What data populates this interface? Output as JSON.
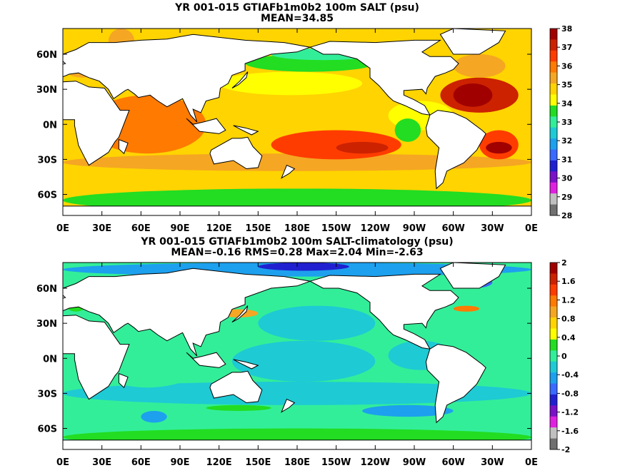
{
  "chart_data": [
    {
      "type": "heatmap",
      "title": "YR 001-015 GTIAFb1m0b2 100m SALT (psu)",
      "subtitle": "MEAN=34.85",
      "xticks": [
        "0E",
        "30E",
        "60E",
        "90E",
        "120E",
        "150E",
        "180E",
        "150W",
        "120W",
        "90W",
        "60W",
        "30W",
        "0E"
      ],
      "yticks": [
        "60N",
        "30N",
        "0N",
        "30S",
        "60S"
      ],
      "colorbar_ticks": [
        "38",
        "37",
        "36",
        "35",
        "34",
        "33",
        "32",
        "31",
        "30",
        "29",
        "28"
      ],
      "colorbar_colors": [
        "#ffffff",
        "#a10000",
        "#cc2200",
        "#ff3c00",
        "#ff7a00",
        "#f5a623",
        "#ffd400",
        "#ffff00",
        "#22dd22",
        "#33ee99",
        "#1ecad4",
        "#1da0ee",
        "#3a6aff",
        "#2020d0",
        "#7a10c8",
        "#e020e0",
        "#c0c0c0",
        "#707070"
      ],
      "mean": 34.85
    },
    {
      "type": "heatmap",
      "title": "YR 001-015 GTIAFb1m0b2 100m SALT-climatology (psu)",
      "subtitle": "MEAN=-0.16   RMS=0.28   Max=2.04   Min=-2.63",
      "xticks": [
        "0E",
        "30E",
        "60E",
        "90E",
        "120E",
        "150E",
        "180E",
        "150W",
        "120W",
        "90W",
        "60W",
        "30W",
        "0E"
      ],
      "yticks": [
        "60N",
        "30N",
        "0N",
        "30S",
        "60S"
      ],
      "colorbar_ticks": [
        "2",
        "1.6",
        "1.2",
        "0.8",
        "0.4",
        "0",
        "-0.4",
        "-0.8",
        "-1.2",
        "-1.6",
        "-2"
      ],
      "colorbar_colors": [
        "#ffffff",
        "#a10000",
        "#cc2200",
        "#ff3c00",
        "#ff7a00",
        "#f5a623",
        "#ffd400",
        "#ffff00",
        "#22dd22",
        "#33ee99",
        "#1ecad4",
        "#1da0ee",
        "#3a6aff",
        "#2020d0",
        "#7a10c8",
        "#e020e0",
        "#c0c0c0",
        "#707070"
      ],
      "mean": -0.16,
      "rms": 0.28,
      "max": 2.04,
      "min": -2.63
    }
  ]
}
